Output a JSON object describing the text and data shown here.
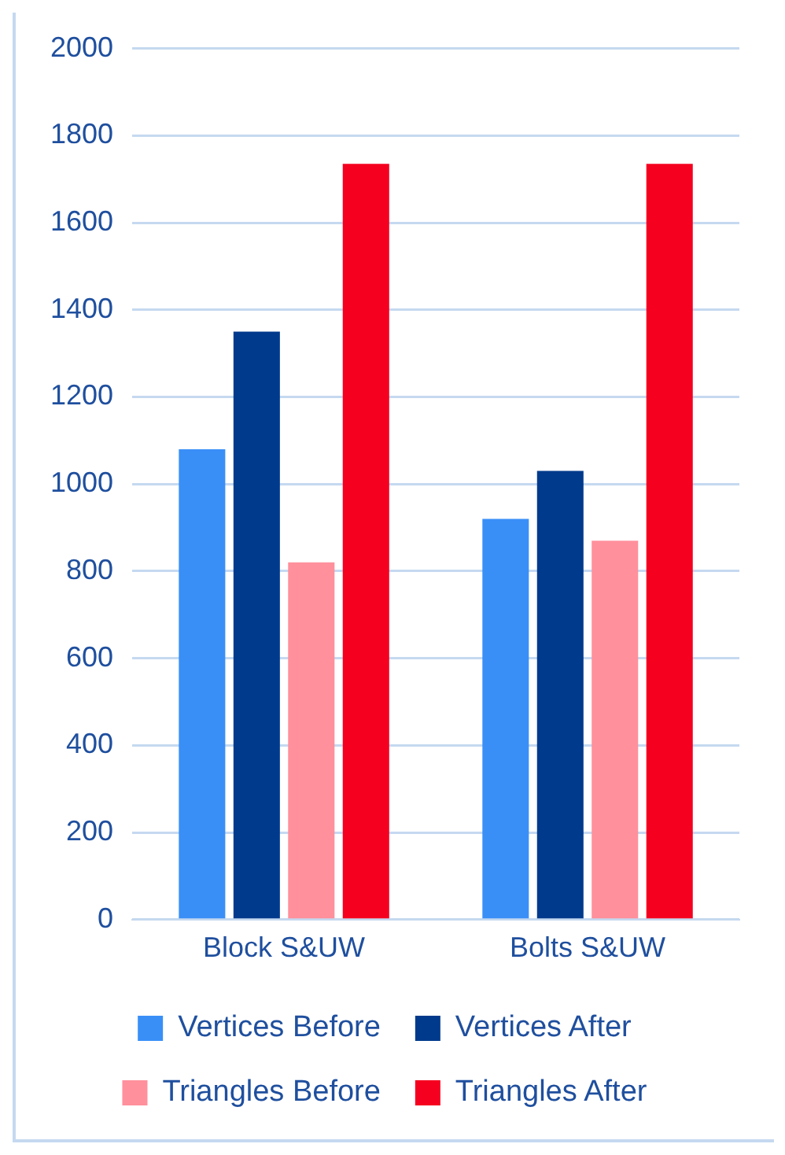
{
  "chart_data": {
    "type": "bar",
    "categories": [
      "Block S&UW",
      "Bolts S&UW"
    ],
    "series": [
      {
        "name": "Vertices Before",
        "color": "#3a8ff7",
        "values": [
          1080,
          920
        ]
      },
      {
        "name": "Vertices After",
        "color": "#003a8c",
        "values": [
          1350,
          1030
        ]
      },
      {
        "name": "Triangles Before",
        "color": "#ff909c",
        "values": [
          820,
          870
        ]
      },
      {
        "name": "Triangles After",
        "color": "#f5001f",
        "values": [
          1735,
          1735
        ]
      }
    ],
    "ylim": [
      0,
      2000
    ],
    "yticks": [
      0,
      200,
      400,
      600,
      800,
      1000,
      1200,
      1400,
      1600,
      1800,
      2000
    ],
    "grid": "y",
    "legend": "bottom"
  }
}
